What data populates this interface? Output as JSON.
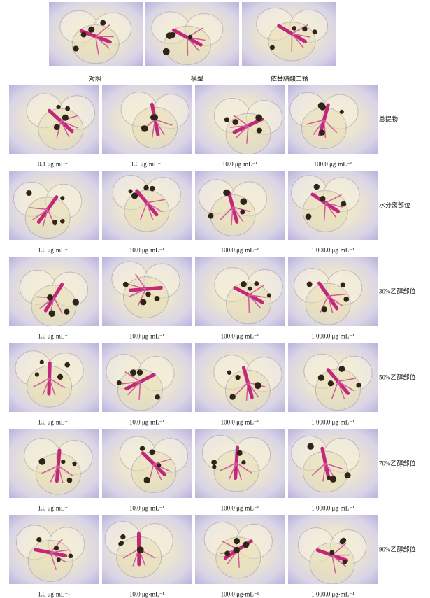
{
  "top_row": {
    "labels": [
      "对照",
      "模型",
      "依替膦酸二钠"
    ]
  },
  "groups": [
    {
      "label": "总提物",
      "concentrations": [
        "0.1 μg·mL⁻¹",
        "1.0 μg·mL⁻¹",
        "10.0 μg·mL⁻¹",
        "100.0 μg·mL⁻¹"
      ]
    },
    {
      "label": "水分离部位",
      "concentrations": [
        "1.0 μg·mL⁻¹",
        "10.0 μg·mL⁻¹",
        "100.0 μg·mL⁻¹",
        "1 000.0 μg·mL⁻¹"
      ]
    },
    {
      "label": "30%乙醇部位",
      "concentrations": [
        "1.0 μg·mL⁻¹",
        "10.0 μg·mL⁻¹",
        "100.0 μg·mL⁻¹",
        "1 000.0 μg·mL⁻¹"
      ]
    },
    {
      "label": "50%乙醇部位",
      "concentrations": [
        "1.0 μg·mL⁻¹",
        "10.0 μg·mL⁻¹",
        "100.0 μg·mL⁻¹",
        "1 000.0 μg·mL⁻¹"
      ]
    },
    {
      "label": "70%乙醇部位",
      "concentrations": [
        "1.0 μg·mL⁻¹",
        "10.0 μg·mL⁻¹",
        "100.0 μg·mL⁻¹",
        "1 000.0 μg·mL⁻¹"
      ]
    },
    {
      "label": "90%乙醇部位",
      "concentrations": [
        "1.0 μg·mL⁻¹",
        "10.0 μg·mL⁻¹",
        "100.0 μg·mL⁻¹",
        "1 000.0 μg·mL⁻¹"
      ]
    }
  ]
}
